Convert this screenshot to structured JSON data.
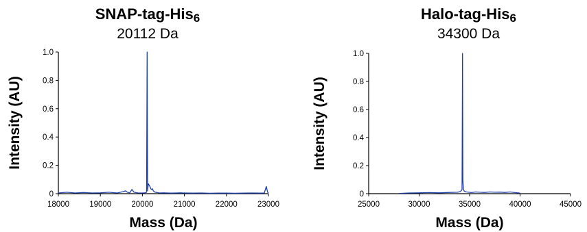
{
  "chart_data": [
    {
      "type": "line",
      "title": "SNAP-tag-His",
      "title_subscript": "6",
      "subtitle": "20112 Da",
      "xlabel": "Mass (Da)",
      "ylabel": "Intensity (AU)",
      "xlim": [
        18000,
        23000
      ],
      "ylim": [
        0,
        1.0
      ],
      "xticks": [
        18000,
        19000,
        20000,
        21000,
        22000,
        23000
      ],
      "yticks": [
        0,
        0.2,
        0.4,
        0.6,
        0.8,
        1.0
      ],
      "ytick_labels": [
        "0",
        "0.2",
        "0.4",
        "0.6",
        "0.8",
        "1.0"
      ],
      "grid": false,
      "color": "#1f3fa8",
      "series": [
        {
          "x": [
            18000,
            18200,
            18400,
            18600,
            18800,
            19000,
            19200,
            19400,
            19550,
            19600,
            19640,
            19700,
            19750,
            19800,
            19900,
            20000,
            20060,
            20100,
            20112,
            20125,
            20140,
            20160,
            20180,
            20200,
            20220,
            20240,
            20260,
            20280,
            20300,
            20350,
            20400,
            20500,
            20600,
            20700,
            20800,
            20900,
            21000,
            21200,
            21400,
            21600,
            21800,
            22000,
            22200,
            22400,
            22600,
            22800,
            22900,
            22950,
            22980,
            23000
          ],
          "y": [
            0.005,
            0.01,
            0.005,
            0.008,
            0.005,
            0.006,
            0.01,
            0.005,
            0.015,
            0.02,
            0.01,
            0.006,
            0.03,
            0.01,
            0.005,
            0.005,
            0.006,
            0.01,
            1.0,
            0.02,
            0.07,
            0.06,
            0.05,
            0.035,
            0.03,
            0.035,
            0.02,
            0.015,
            0.01,
            0.008,
            0.005,
            0.006,
            0.005,
            0.004,
            0.005,
            0.006,
            0.005,
            0.004,
            0.005,
            0.003,
            0.004,
            0.004,
            0.003,
            0.004,
            0.005,
            0.004,
            0.005,
            0.05,
            0.01,
            0.005
          ]
        }
      ]
    },
    {
      "type": "line",
      "title": "Halo-tag-His",
      "title_subscript": "6",
      "subtitle": "34300 Da",
      "xlabel": "Mass (Da)",
      "ylabel": "Intensity (AU)",
      "xlim": [
        25000,
        45000
      ],
      "ylim": [
        0,
        1.0
      ],
      "xticks": [
        25000,
        30000,
        35000,
        40000,
        45000
      ],
      "yticks": [
        0,
        0.2,
        0.4,
        0.6,
        0.8,
        1.0
      ],
      "ytick_labels": [
        "0",
        "0.2",
        "0.4",
        "0.6",
        "0.8",
        "1.0"
      ],
      "grid": false,
      "color": "#1f3fa8",
      "series": [
        {
          "x": [
            28000,
            29000,
            30000,
            31000,
            32000,
            33000,
            33800,
            34100,
            34250,
            34300,
            34330,
            34360,
            34400,
            34450,
            34550,
            34700,
            34900,
            35200,
            35600,
            36000,
            36500,
            37000,
            37500,
            38000,
            38500,
            39000,
            39500,
            40000
          ],
          "y": [
            0.002,
            0.005,
            0.006,
            0.008,
            0.006,
            0.009,
            0.01,
            0.015,
            0.03,
            1.0,
            0.1,
            0.06,
            0.03,
            0.02,
            0.015,
            0.012,
            0.01,
            0.008,
            0.012,
            0.01,
            0.009,
            0.012,
            0.01,
            0.011,
            0.009,
            0.012,
            0.008,
            0.004
          ]
        }
      ]
    }
  ]
}
